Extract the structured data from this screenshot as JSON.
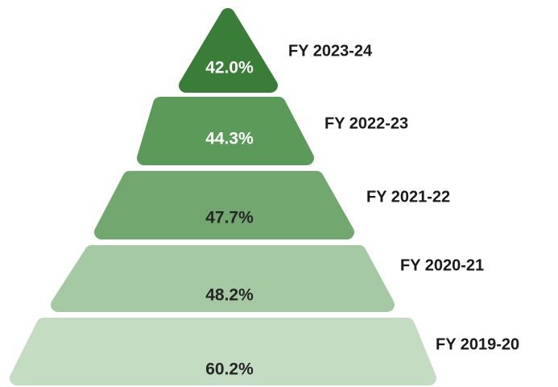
{
  "chart_data": {
    "type": "pyramid",
    "categories": [
      "FY 2023-24",
      "FY 2022-23",
      "FY 2021-22",
      "FY 2020-21",
      "FY 2019-20"
    ],
    "values": [
      42.0,
      44.3,
      47.7,
      48.2,
      60.2
    ],
    "value_labels": [
      "42.0%",
      "44.3%",
      "47.7%",
      "48.2%",
      "60.2%"
    ],
    "colors": [
      "#3a7d38",
      "#5c9a5a",
      "#72a870",
      "#a5c9a3",
      "#c4dcc2"
    ]
  }
}
